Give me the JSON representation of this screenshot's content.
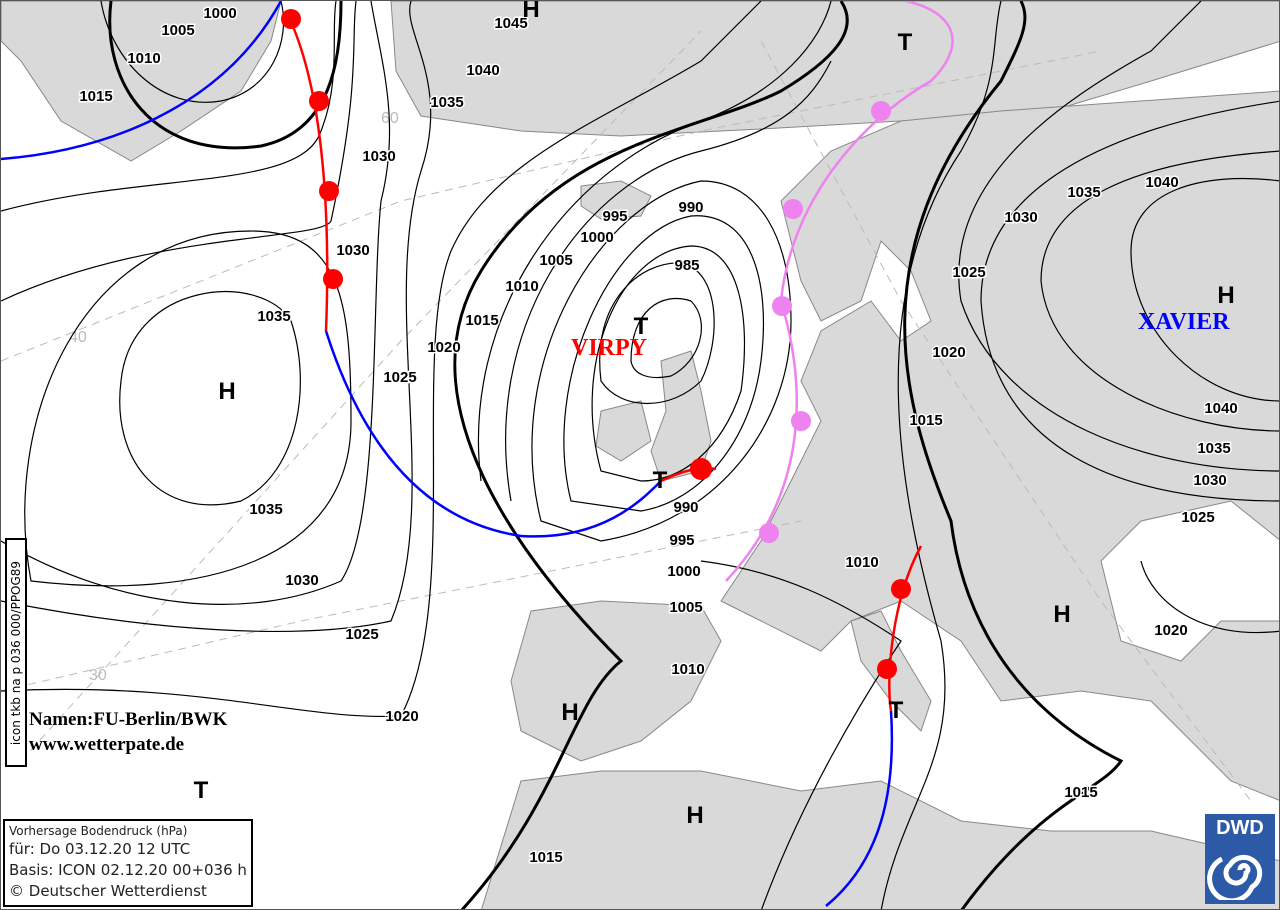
{
  "map": {
    "pressure_labels": [
      "1000",
      "1005",
      "1010",
      "1015",
      "1030",
      "1030",
      "1035",
      "1040",
      "1045",
      "1035",
      "1035",
      "1030",
      "1025",
      "1020",
      "1025",
      "1015",
      "1010",
      "1005",
      "1000",
      "995",
      "990",
      "985",
      "990",
      "995",
      "1000",
      "1005",
      "1010",
      "1020",
      "1015",
      "1030",
      "1035",
      "1040",
      "1025",
      "1020",
      "1040",
      "1035",
      "1030",
      "1025",
      "1020",
      "1010",
      "1015",
      "1015"
    ],
    "pressure_centers": [
      "H",
      "H",
      "T",
      "T",
      "T",
      "H",
      "H",
      "H",
      "T",
      "T",
      "H"
    ],
    "grid_labels": [
      "40",
      "30",
      "60"
    ],
    "storm_names": [
      {
        "name": "VIRPY",
        "color": "#ff0000"
      },
      {
        "name": "XAVIER",
        "color": "#0000ff"
      }
    ],
    "colors": {
      "land": "#d9d9d9",
      "sea": "#ffffff",
      "warm_front": "#ff0000",
      "cold_front": "#0000ff",
      "occlusion": "#ee82ee",
      "isobar": "#000000"
    }
  },
  "side_label": "icon tkb na p 036 000/PPOG89",
  "credit": {
    "line1": "Namen:FU-Berlin/BWK",
    "line2": "www.wetterpate.de"
  },
  "info": {
    "title": "Vorhersage Bodendruck (hPa)",
    "valid": "für:  Do 03.12.20  12 UTC",
    "basis": "Basis: ICON  02.12.20 00+036 h",
    "copyright": "© Deutscher Wetterdienst"
  },
  "logo": {
    "text": "DWD"
  }
}
